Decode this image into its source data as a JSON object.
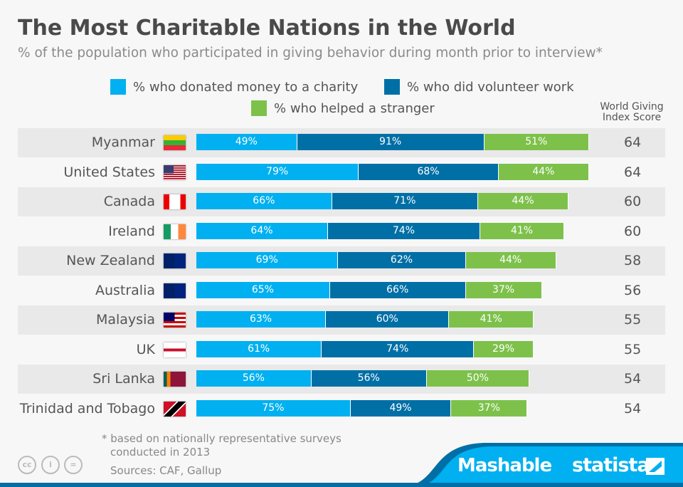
{
  "title": "The Most Charitable Nations in the World",
  "subtitle": "% of the population who participated in giving behavior during month prior to interview*",
  "score_header": "World Giving Index Score",
  "colors": {
    "money": "#00b0f0",
    "volunteer": "#006fa6",
    "stranger": "#7dc14b",
    "band": "#e9e9e9"
  },
  "chart_data": {
    "type": "bar",
    "stacked": true,
    "orientation": "horizontal",
    "categories": [
      "Myanmar",
      "United States",
      "Canada",
      "Ireland",
      "New Zealand",
      "Australia",
      "Malaysia",
      "UK",
      "Sri Lanka",
      "Trinidad and Tobago"
    ],
    "series": [
      {
        "name": "% who donated money to a charity",
        "values": [
          49,
          79,
          66,
          64,
          69,
          65,
          63,
          61,
          56,
          75
        ]
      },
      {
        "name": "% who did volunteer work",
        "values": [
          91,
          68,
          71,
          74,
          62,
          66,
          60,
          74,
          56,
          49
        ]
      },
      {
        "name": "% who helped a stranger",
        "values": [
          51,
          44,
          44,
          41,
          44,
          37,
          41,
          29,
          50,
          37
        ]
      }
    ],
    "scores": [
      64,
      64,
      60,
      60,
      58,
      56,
      55,
      55,
      54,
      54
    ],
    "legend": "top"
  },
  "footnote1": "* based on nationally representative surveys",
  "footnote2": "conducted in 2013",
  "sources": "Sources: CAF, Gallup",
  "brands": {
    "mashable": "Mashable",
    "statista": "statista"
  },
  "license_icons": [
    "cc",
    "by",
    "nd"
  ]
}
